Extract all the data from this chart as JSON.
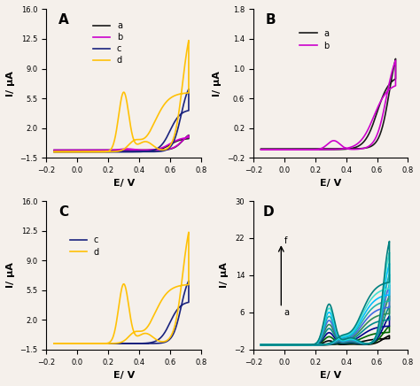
{
  "fig_width": 4.74,
  "fig_height": 4.36,
  "dpi": 100,
  "background_color": "#f5f0eb",
  "xlim": [
    -0.2,
    0.8
  ],
  "xlabel": "E/ V",
  "ylabel": "I/ μA",
  "ylim_A": [
    -1.5,
    16
  ],
  "ylim_B": [
    -0.2,
    1.8
  ],
  "ylim_C": [
    -1.5,
    16
  ],
  "ylim_D": [
    -2,
    30
  ],
  "yticks_A": [
    -1.5,
    2,
    5.5,
    9,
    12.5,
    16
  ],
  "yticks_B": [
    -0.2,
    0.2,
    0.6,
    1.0,
    1.4,
    1.8
  ],
  "yticks_C": [
    -1.5,
    2,
    5.5,
    9,
    12.5,
    16
  ],
  "yticks_D": [
    -2,
    6,
    14,
    22,
    30
  ],
  "xticks": [
    -0.2,
    0,
    0.2,
    0.4,
    0.6,
    0.8
  ],
  "color_black": "#1a1a1a",
  "color_magenta": "#cc00cc",
  "color_navy": "#1a237e",
  "color_gold": "#ffc107",
  "panel_D_colors": [
    "#000000",
    "#006400",
    "#00008b",
    "#008b8b",
    "#2e8b57",
    "#4169e1",
    "#20b2aa",
    "#00bfff",
    "#40e0d0",
    "#008080"
  ]
}
